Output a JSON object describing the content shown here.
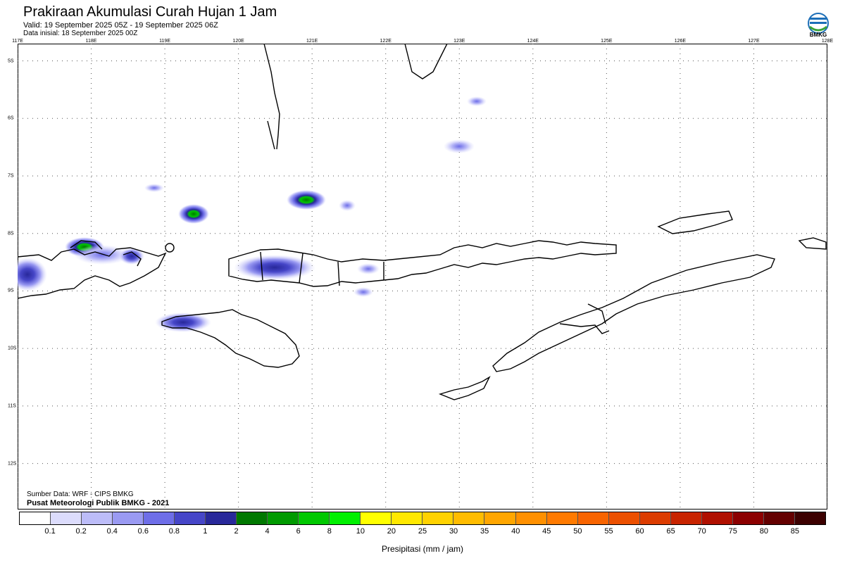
{
  "header": {
    "title": "Prakiraan Akumulasi Curah Hujan 1 Jam",
    "valid": "Valid: 19 September 2025 05Z - 19 September 2025 06Z",
    "init": "Data inisial: 18 September 2025 00Z"
  },
  "logo": {
    "icon": "bmkg-logo-icon",
    "text": "BMKG",
    "colors": [
      "#1d6fb8",
      "#3aa43a"
    ]
  },
  "map": {
    "lon_ticks": [
      "117E",
      "118E",
      "119E",
      "120E",
      "121E",
      "122E",
      "123E",
      "124E",
      "125E",
      "126E",
      "127E",
      "128E"
    ],
    "lat_ticks": [
      "5S",
      "6S",
      "7S",
      "8S",
      "9S",
      "10S",
      "11S",
      "12S"
    ],
    "extent": {
      "lon": [
        117,
        128
      ],
      "lat": [
        -4.7,
        -12.8
      ]
    },
    "grid": "dotted"
  },
  "source": {
    "line1": "Sumber Data: WRF - CIPS BMKG",
    "line2": "Pusat Meteorologi Publik BMKG - 2021"
  },
  "legend": {
    "labels": [
      "0.1",
      "0.2",
      "0.4",
      "0.6",
      "0.8",
      "1",
      "2",
      "4",
      "6",
      "8",
      "10",
      "20",
      "25",
      "30",
      "35",
      "40",
      "45",
      "50",
      "55",
      "60",
      "65",
      "70",
      "75",
      "80",
      "85"
    ],
    "colors": [
      "#ffffff",
      "#dcdcfc",
      "#bcbcf8",
      "#9a9af2",
      "#6e6ee8",
      "#4646c8",
      "#28289a",
      "#007800",
      "#009a00",
      "#00c800",
      "#00f000",
      "#ffff00",
      "#ffe800",
      "#ffd200",
      "#ffbc00",
      "#ffa600",
      "#ff9000",
      "#ff7a00",
      "#f86400",
      "#ec5000",
      "#dc3c00",
      "#c82400",
      "#b01000",
      "#8c0000",
      "#640000",
      "#3c0000"
    ],
    "units": "Presipitasi (mm / jam)"
  },
  "rain_cells": [
    {
      "lon": 118.15,
      "lat": -8.37,
      "peak_mm": 4
    },
    {
      "lon": 117.1,
      "lat": -8.8,
      "peak_mm": 1
    },
    {
      "lon": 118.8,
      "lat": -8.52,
      "peak_mm": 1
    },
    {
      "lon": 120.4,
      "lat": -8.65,
      "peak_mm": 1
    },
    {
      "lon": 119.37,
      "lat": -7.84,
      "peak_mm": 4
    },
    {
      "lon": 120.92,
      "lat": -7.68,
      "peak_mm": 4
    },
    {
      "lon": 119.2,
      "lat": -9.74,
      "peak_mm": 1
    },
    {
      "lon": 123.0,
      "lat": -6.49,
      "peak_mm": 0.8
    },
    {
      "lon": 123.25,
      "lat": -5.7,
      "peak_mm": 0.4
    },
    {
      "lon": 121.8,
      "lat": -8.6,
      "peak_mm": 0.4
    },
    {
      "lon": 121.7,
      "lat": -9.0,
      "peak_mm": 0.4
    },
    {
      "lon": 118.85,
      "lat": -7.2,
      "peak_mm": 0.2
    }
  ]
}
